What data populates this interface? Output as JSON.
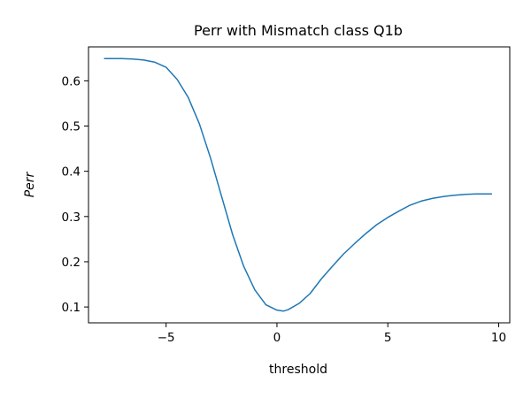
{
  "chart_data": {
    "type": "line",
    "title": "Perr with Mismatch class Q1b",
    "xlabel": "threshold",
    "ylabel": "Perr",
    "xlim": [
      -8.5,
      10.5
    ],
    "ylim": [
      0.065,
      0.675
    ],
    "xticks": [
      -5,
      0,
      5,
      10
    ],
    "xtick_labels": [
      "−5",
      "0",
      "5",
      "10"
    ],
    "yticks": [
      0.1,
      0.2,
      0.3,
      0.4,
      0.5,
      0.6
    ],
    "ytick_labels": [
      "0.1",
      "0.2",
      "0.3",
      "0.4",
      "0.5",
      "0.6"
    ],
    "grid": false,
    "legend": false,
    "series": [
      {
        "color": "#1f77b4",
        "x": [
          -7.8,
          -7.0,
          -6.5,
          -6.0,
          -5.5,
          -5.0,
          -4.5,
          -4.0,
          -3.5,
          -3.0,
          -2.5,
          -2.0,
          -1.5,
          -1.0,
          -0.5,
          0.0,
          0.3,
          0.5,
          1.0,
          1.5,
          2.0,
          2.5,
          3.0,
          3.5,
          4.0,
          4.5,
          5.0,
          5.5,
          6.0,
          6.5,
          7.0,
          7.5,
          8.0,
          8.5,
          9.0,
          9.7
        ],
        "y": [
          0.649,
          0.649,
          0.648,
          0.646,
          0.641,
          0.63,
          0.603,
          0.563,
          0.505,
          0.43,
          0.345,
          0.26,
          0.19,
          0.138,
          0.105,
          0.093,
          0.091,
          0.094,
          0.108,
          0.13,
          0.162,
          0.19,
          0.217,
          0.24,
          0.262,
          0.282,
          0.298,
          0.312,
          0.325,
          0.334,
          0.34,
          0.344,
          0.347,
          0.349,
          0.35,
          0.35
        ]
      }
    ]
  }
}
